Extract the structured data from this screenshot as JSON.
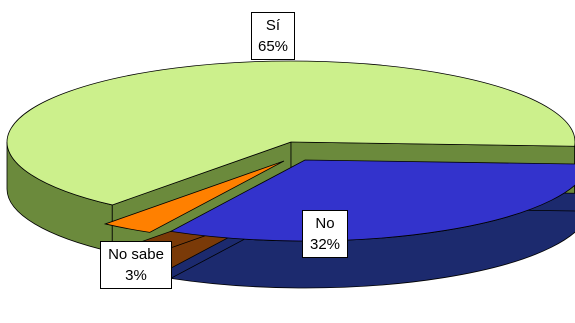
{
  "chart_data": {
    "type": "pie",
    "title": "",
    "style": "3d-exploded",
    "slices": [
      {
        "name": "Sí",
        "value": 65,
        "label": "65%",
        "color": "#ccf08c",
        "side_color": "#6b8a3c"
      },
      {
        "name": "No",
        "value": 32,
        "label": "32%",
        "color": "#3333cc",
        "side_color": "#1c2a6e"
      },
      {
        "name": "No sabe",
        "value": 3,
        "label": "3%",
        "color": "#ff8000",
        "side_color": "#7a3a08"
      }
    ],
    "legend": "none"
  }
}
